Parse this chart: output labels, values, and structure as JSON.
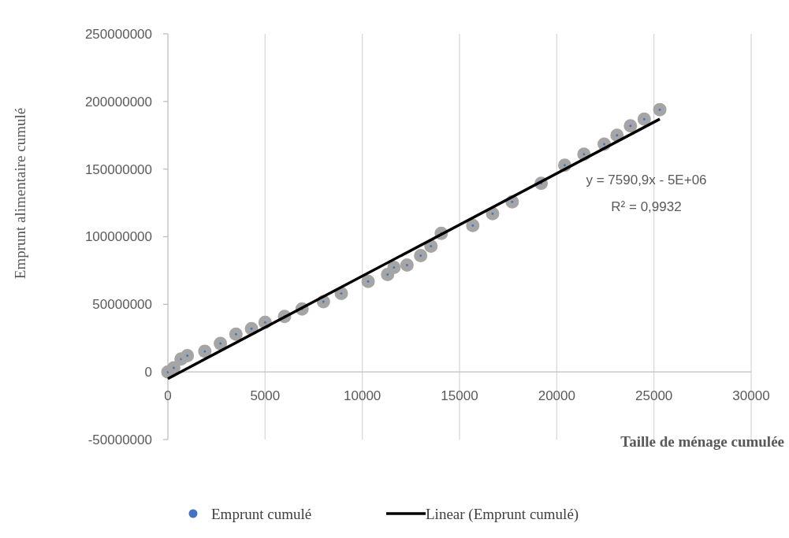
{
  "chart_data": {
    "type": "scatter",
    "xlabel": "Taille de ménage cumulée",
    "ylabel": "Emprunt alimentaire cumulé",
    "xlim": [
      0,
      30000
    ],
    "xticks": [
      0,
      5000,
      10000,
      15000,
      20000,
      25000,
      30000
    ],
    "ylim": [
      -50000000,
      250000000
    ],
    "yticks": [
      -50000000,
      0,
      50000000,
      100000000,
      150000000,
      200000000,
      250000000
    ],
    "grid": "x",
    "legend": "bottom",
    "marker": "circle",
    "annotations": [
      "y = 7590,9x - 5E+06",
      "R² = 0,9932"
    ],
    "series": [
      {
        "name": "Emprunt cumulé",
        "color": "#4472c4",
        "x": [
          0,
          300,
          677,
          1000,
          1900,
          2700,
          3500,
          4300,
          5000,
          6000,
          6900,
          8000,
          8920,
          10300,
          11300,
          11630,
          12300,
          13000,
          13530,
          14060,
          15680,
          16700,
          17710,
          19200,
          20410,
          21400,
          22440,
          23100,
          23790,
          24500,
          25300
        ],
        "values": [
          0,
          3000000,
          9500000,
          12000000,
          15300000,
          21000000,
          27900000,
          32000000,
          36600000,
          41000000,
          46500000,
          52000000,
          58000000,
          66900000,
          72000000,
          77300000,
          79000000,
          86000000,
          93000000,
          102500000,
          108300000,
          117000000,
          125800000,
          139400000,
          152900000,
          161000000,
          168400000,
          175000000,
          182000000,
          187000000,
          194000000
        ]
      },
      {
        "name": "Linear (Emprunt cumulé)",
        "type": "line",
        "color": "#000000",
        "line_style": "solid",
        "marker": "none",
        "x": [
          0,
          25300
        ],
        "values": [
          -5000000,
          187000000
        ]
      }
    ]
  }
}
